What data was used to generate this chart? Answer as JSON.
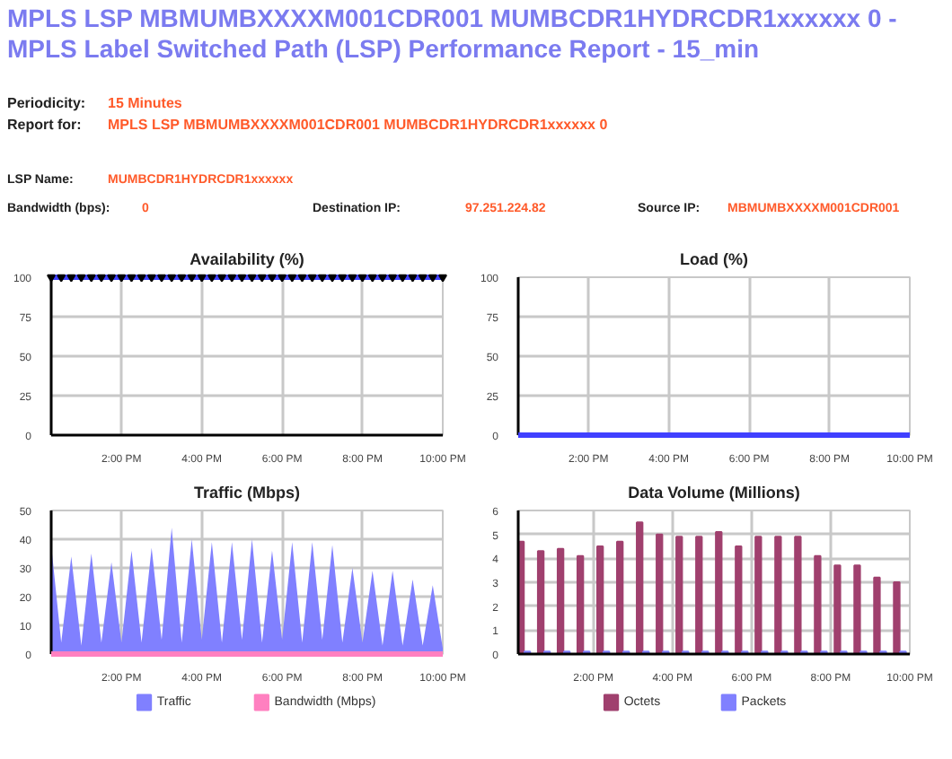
{
  "chart_data": [
    {
      "type": "other",
      "title": "MPLS LSP MBMUMBXXXXM001CDR001 MUMBCDR1HYDRCDR1xxxxxx 0 - MPLS Label Switched Path (LSP) Performance Report - 15_min",
      "annotations": [
        "Periodicity:",
        "15 Minutes",
        "Report for:",
        "MPLS LSP MBMUMBXXXXM001CDR001 MUMBCDR1HYDRCDR1xxxxxx 0",
        "LSP Name:",
        "MUMBCDR1HYDRCDR1xxxxxx",
        "Bandwidth (bps):",
        "0",
        "Destination IP:",
        "97.251.224.82",
        "Source IP:",
        "MBMUMBXXXXM001CDR001"
      ]
    },
    {
      "type": "line",
      "title": "Availability (%)",
      "x": [
        12.25,
        12.5,
        12.75,
        13,
        13.25,
        13.5,
        13.75,
        14,
        14.25,
        14.5,
        14.75,
        15,
        15.25,
        15.5,
        15.75,
        16,
        16.25,
        16.5,
        16.75,
        17,
        17.25,
        17.5,
        17.75,
        18,
        18.25,
        18.5,
        18.75,
        19,
        19.25,
        19.5,
        19.75,
        20,
        20.25,
        20.5,
        20.75,
        21,
        21.25,
        21.5,
        21.75,
        22
      ],
      "series": [
        {
          "color": "#4040ff",
          "values": [
            100,
            100,
            100,
            100,
            100,
            100,
            100,
            100,
            100,
            100,
            100,
            100,
            100,
            100,
            100,
            100,
            100,
            100,
            100,
            100,
            100,
            100,
            100,
            100,
            100,
            100,
            100,
            100,
            100,
            100,
            100,
            100,
            100,
            100,
            100,
            100,
            100,
            100,
            100,
            100
          ]
        }
      ],
      "xlim": [
        12.25,
        22
      ],
      "xticks": [
        {
          "value": 14,
          "label": "2:00 PM"
        },
        {
          "value": 16,
          "label": "4:00 PM"
        },
        {
          "value": 18,
          "label": "6:00 PM"
        },
        {
          "value": 20,
          "label": "8:00 PM"
        },
        {
          "value": 22,
          "label": "10:00 PM"
        }
      ],
      "ylim": [
        0,
        100
      ],
      "yticks": [
        0,
        25,
        50,
        75,
        100
      ],
      "grid": true,
      "marker": "triangle",
      "legend": false
    },
    {
      "type": "line",
      "title": "Load (%)",
      "x": [
        12.25,
        12.5,
        12.75,
        13,
        13.25,
        13.5,
        13.75,
        14,
        14.25,
        14.5,
        14.75,
        15,
        15.25,
        15.5,
        15.75,
        16,
        16.25,
        16.5,
        16.75,
        17,
        17.25,
        17.5,
        17.75,
        18,
        18.25,
        18.5,
        18.75,
        19,
        19.25,
        19.5,
        19.75,
        20,
        20.25,
        20.5,
        20.75,
        21,
        21.25,
        21.5,
        21.75,
        22
      ],
      "series": [
        {
          "color": "#4040ff",
          "values": [
            0,
            0,
            0,
            0,
            0,
            0,
            0,
            0,
            0,
            0,
            0,
            0,
            0,
            0,
            0,
            0,
            0,
            0,
            0,
            0,
            0,
            0,
            0,
            0,
            0,
            0,
            0,
            0,
            0,
            0,
            0,
            0,
            0,
            0,
            0,
            0,
            0,
            0,
            0,
            0
          ]
        }
      ],
      "xlim": [
        12.25,
        22
      ],
      "xticks": [
        {
          "value": 14,
          "label": "2:00 PM"
        },
        {
          "value": 16,
          "label": "4:00 PM"
        },
        {
          "value": 18,
          "label": "6:00 PM"
        },
        {
          "value": 20,
          "label": "8:00 PM"
        },
        {
          "value": 22,
          "label": "10:00 PM"
        }
      ],
      "ylim": [
        0,
        100
      ],
      "yticks": [
        0,
        25,
        50,
        75,
        100
      ],
      "grid": true,
      "legend": false
    },
    {
      "type": "area",
      "title": "Traffic (Mbps)",
      "x": [
        12.25,
        12.5,
        12.75,
        13,
        13.25,
        13.5,
        13.75,
        14,
        14.25,
        14.5,
        14.75,
        15,
        15.25,
        15.5,
        15.75,
        16,
        16.25,
        16.5,
        16.75,
        17,
        17.25,
        17.5,
        17.75,
        18,
        18.25,
        18.5,
        18.75,
        19,
        19.25,
        19.5,
        19.75,
        20,
        20.25,
        20.5,
        20.75,
        21,
        21.25,
        21.5,
        21.75,
        22
      ],
      "series": [
        {
          "name": "Traffic",
          "color": "#8080ff",
          "values": [
            38,
            4,
            34,
            3,
            35,
            4,
            32,
            4,
            36,
            4,
            37,
            5,
            44,
            4,
            40,
            5,
            39,
            4,
            39,
            5,
            40,
            4,
            36,
            5,
            39,
            4,
            39,
            5,
            38,
            4,
            30,
            4,
            29,
            3,
            29,
            3,
            26,
            3,
            24,
            2
          ]
        },
        {
          "name": "Bandwidth (Mbps)",
          "type": "line",
          "color": "#ff80c0",
          "values": [
            0,
            0,
            0,
            0,
            0,
            0,
            0,
            0,
            0,
            0,
            0,
            0,
            0,
            0,
            0,
            0,
            0,
            0,
            0,
            0,
            0,
            0,
            0,
            0,
            0,
            0,
            0,
            0,
            0,
            0,
            0,
            0,
            0,
            0,
            0,
            0,
            0,
            0,
            0,
            0
          ]
        }
      ],
      "xlim": [
        12.25,
        22
      ],
      "xticks": [
        {
          "value": 14,
          "label": "2:00 PM"
        },
        {
          "value": 16,
          "label": "4:00 PM"
        },
        {
          "value": 18,
          "label": "6:00 PM"
        },
        {
          "value": 20,
          "label": "8:00 PM"
        },
        {
          "value": 22,
          "label": "10:00 PM"
        }
      ],
      "ylim": [
        0,
        50
      ],
      "yticks": [
        0,
        10,
        20,
        30,
        40,
        50
      ],
      "grid": true,
      "legend": "bottom"
    },
    {
      "type": "bar",
      "title": "Data Volume (Millions)",
      "x": [
        12.25,
        12.75,
        13.25,
        13.75,
        14.25,
        14.75,
        15.25,
        15.75,
        16.25,
        16.75,
        17.25,
        17.75,
        18.25,
        18.75,
        19.25,
        19.75,
        20.25,
        20.75,
        21.25,
        21.75
      ],
      "series": [
        {
          "name": "Octets",
          "color": "#a0406e",
          "values": [
            4.7,
            4.3,
            4.4,
            4.1,
            4.5,
            4.7,
            5.5,
            5.0,
            4.9,
            4.9,
            5.1,
            4.5,
            4.9,
            4.9,
            4.9,
            4.1,
            3.7,
            3.7,
            3.2,
            3.0
          ]
        },
        {
          "name": "Packets",
          "color": "#8080ff",
          "values": [
            0.1,
            0.1,
            0.1,
            0.1,
            0.1,
            0.1,
            0.1,
            0.1,
            0.1,
            0.1,
            0.1,
            0.1,
            0.1,
            0.1,
            0.1,
            0.1,
            0.1,
            0.1,
            0.1,
            0.1
          ]
        }
      ],
      "xlim": [
        12.1,
        22
      ],
      "xticks": [
        {
          "value": 14,
          "label": "2:00 PM"
        },
        {
          "value": 16,
          "label": "4:00 PM"
        },
        {
          "value": 18,
          "label": "6:00 PM"
        },
        {
          "value": 20,
          "label": "8:00 PM"
        },
        {
          "value": 22,
          "label": "10:00 PM"
        }
      ],
      "ylim": [
        0,
        6
      ],
      "yticks": [
        0,
        1,
        2,
        3,
        4,
        5,
        6
      ],
      "grid": true,
      "legend": "bottom"
    }
  ]
}
